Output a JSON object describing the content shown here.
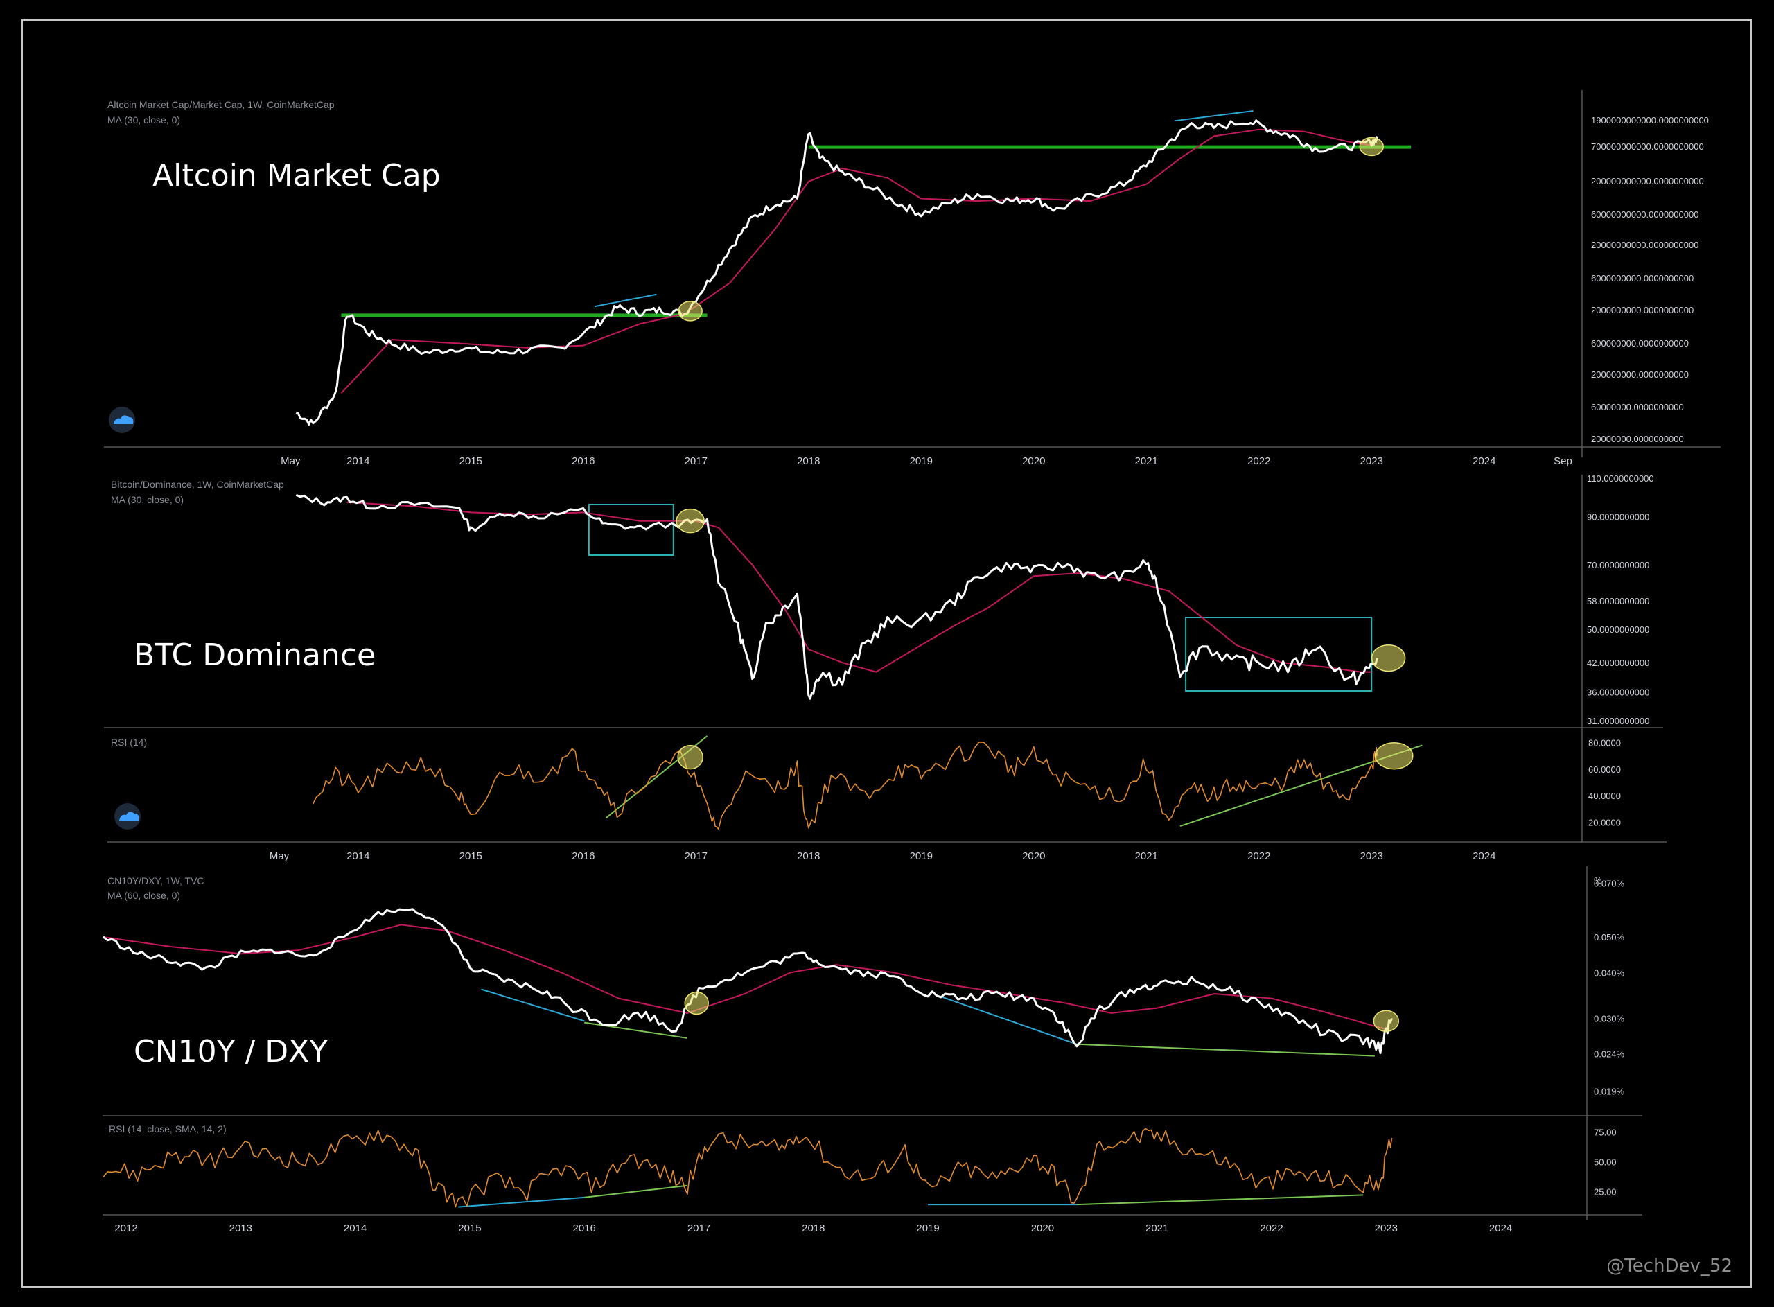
{
  "colors": {
    "background": "#000000",
    "price": "#ffffff",
    "ma": "#c2185b",
    "rsi": "#e08a2c",
    "support": "#1faa1f",
    "divergence_cyan": "#2aa8d8",
    "trend_green": "#7bc652",
    "highlight": "#e8e26a",
    "box": "#2bb3b3"
  },
  "watermark": "@TechDev_52",
  "logo_icon": "tradingview-cloud-icon",
  "chart_data": [
    {
      "type": "line",
      "title": "Altcoin Market Cap",
      "legend": [
        "Altcoin Market Cap/Market Cap, 1W, CoinMarketCap",
        "MA (30, close, 0)"
      ],
      "x_ticks": [
        "May",
        "2014",
        "2015",
        "2016",
        "2017",
        "2018",
        "2019",
        "2020",
        "2021",
        "2022",
        "2023",
        "2024",
        "Sep"
      ],
      "y_ticks": [
        "20000000.0000000000",
        "60000000.0000000000",
        "200000000.0000000000",
        "600000000.0000000000",
        "2000000000.0000000000",
        "6000000000.0000000000",
        "20000000000.0000000000",
        "60000000000.0000000000",
        "200000000000.0000000000",
        "700000000000.0000000000",
        "1900000000000.0000000000"
      ],
      "y_scale": "log",
      "series": [
        {
          "name": "Altcoin Market Cap/Market Cap",
          "x": [
            2013.45,
            2013.6,
            2013.8,
            2013.9,
            2014.1,
            2014.3,
            2014.6,
            2014.9,
            2015.2,
            2015.5,
            2015.8,
            2016.1,
            2016.3,
            2016.5,
            2016.7,
            2016.9,
            2017.1,
            2017.3,
            2017.5,
            2017.7,
            2017.9,
            2018.0,
            2018.1,
            2018.3,
            2018.5,
            2018.8,
            2019.0,
            2019.3,
            2019.5,
            2019.8,
            2020.0,
            2020.2,
            2020.5,
            2020.8,
            2021.0,
            2021.2,
            2021.4,
            2021.6,
            2021.9,
            2022.1,
            2022.3,
            2022.5,
            2022.8,
            2023.0,
            2023.05
          ],
          "values": [
            60000000,
            40000000,
            120000000,
            2000000000,
            1000000000,
            700000000,
            500000000,
            600000000,
            500000000,
            550000000,
            600000000,
            1300000000,
            2500000000,
            2100000000,
            2300000000,
            2000000000,
            6000000000,
            20000000000,
            60000000000,
            100000000000,
            120000000000,
            1200000000000,
            500000000000,
            300000000000,
            200000000000,
            100000000000,
            70000000000,
            110000000000,
            140000000000,
            110000000000,
            120000000000,
            80000000000,
            130000000000,
            200000000000,
            400000000000,
            900000000000,
            1700000000000,
            1500000000000,
            1900000000000,
            1400000000000,
            1100000000000,
            700000000000,
            750000000000,
            900000000000,
            950000000000
          ]
        },
        {
          "name": "MA (30, close, 0)",
          "x": [
            2013.85,
            2014.3,
            2014.9,
            2015.5,
            2016.0,
            2016.5,
            2016.9,
            2017.3,
            2017.7,
            2018.0,
            2018.3,
            2018.7,
            2019.0,
            2019.5,
            2020.0,
            2020.5,
            2021.0,
            2021.3,
            2021.6,
            2022.0,
            2022.4,
            2022.8,
            2023.0
          ],
          "values": [
            120000000,
            800000000,
            700000000,
            600000000,
            650000000,
            1400000000,
            2000000000,
            6000000000,
            40000000000,
            220000000000,
            350000000000,
            250000000000,
            120000000000,
            110000000000,
            120000000000,
            110000000000,
            200000000000,
            500000000000,
            1100000000000,
            1400000000000,
            1300000000000,
            900000000000,
            800000000000
          ]
        }
      ],
      "annotations": {
        "support_levels": [
          2000000000,
          750000000000
        ],
        "highlights": [
          "2016.95",
          "2023.0"
        ]
      }
    },
    {
      "type": "line",
      "title": "BTC Dominance",
      "legend": [
        "Bitcoin/Dominance, 1W, CoinMarketCap",
        "MA (30, close, 0)"
      ],
      "x_ticks": [
        "May",
        "2014",
        "2015",
        "2016",
        "2017",
        "2018",
        "2019",
        "2020",
        "2021",
        "2022",
        "2023",
        "2024"
      ],
      "y_ticks": [
        "31.0000000000",
        "36.0000000000",
        "42.0000000000",
        "50.0000000000",
        "58.0000000000",
        "70.0000000000",
        "90.0000000000",
        "110.0000000000"
      ],
      "series": [
        {
          "name": "Bitcoin/Dominance",
          "x": [
            2013.45,
            2013.7,
            2013.9,
            2014.1,
            2014.5,
            2014.9,
            2015.0,
            2015.3,
            2015.6,
            2016.0,
            2016.2,
            2016.5,
            2016.9,
            2017.1,
            2017.2,
            2017.4,
            2017.5,
            2017.6,
            2017.75,
            2017.9,
            2018.0,
            2018.1,
            2018.3,
            2018.5,
            2018.7,
            2019.0,
            2019.3,
            2019.5,
            2019.8,
            2020.0,
            2020.3,
            2020.5,
            2020.8,
            2021.0,
            2021.1,
            2021.3,
            2021.5,
            2021.8,
            2022.0,
            2022.3,
            2022.5,
            2022.8,
            2022.95,
            2023.05
          ],
          "values": [
            100,
            97,
            99,
            95,
            96,
            94,
            84,
            92,
            90,
            93,
            86,
            85,
            87,
            88,
            65,
            48,
            38,
            50,
            55,
            60,
            35,
            40,
            38,
            46,
            52,
            52,
            58,
            66,
            70,
            68,
            70,
            66,
            66,
            71,
            62,
            40,
            46,
            42,
            42,
            41,
            46,
            38,
            40,
            43
          ]
        },
        {
          "name": "MA (30, close, 0)",
          "x": [
            2013.9,
            2014.5,
            2015.0,
            2015.5,
            2016.0,
            2016.5,
            2017.0,
            2017.2,
            2017.5,
            2017.8,
            2018.0,
            2018.3,
            2018.6,
            2019.0,
            2019.3,
            2019.6,
            2020.0,
            2020.4,
            2020.8,
            2021.2,
            2021.5,
            2021.8,
            2022.2,
            2022.6,
            2022.9,
            2023.0
          ],
          "values": [
            97,
            95,
            92,
            91,
            92,
            88,
            88,
            85,
            70,
            55,
            45,
            42,
            40,
            46,
            51,
            56,
            66,
            67,
            65,
            61,
            53,
            46,
            42,
            41,
            40,
            40
          ]
        }
      ]
    },
    {
      "type": "line",
      "title": "RSI (14)",
      "y_ticks": [
        "20.0000",
        "40.0000",
        "60.0000",
        "80.0000"
      ],
      "series": [
        {
          "name": "RSI (14)",
          "x": [
            2013.6,
            2013.8,
            2014.0,
            2014.3,
            2014.6,
            2014.9,
            2015.0,
            2015.3,
            2015.6,
            2015.9,
            2016.1,
            2016.3,
            2016.6,
            2016.9,
            2017.1,
            2017.2,
            2017.4,
            2017.7,
            2017.9,
            2018.0,
            2018.2,
            2018.5,
            2018.8,
            2019.0,
            2019.3,
            2019.6,
            2019.8,
            2020.0,
            2020.2,
            2020.5,
            2020.8,
            2021.0,
            2021.2,
            2021.4,
            2021.6,
            2021.8,
            2022.0,
            2022.2,
            2022.4,
            2022.6,
            2022.8,
            2023.0,
            2023.05
          ],
          "values": [
            40,
            55,
            45,
            60,
            65,
            40,
            20,
            60,
            55,
            70,
            55,
            30,
            55,
            70,
            30,
            15,
            55,
            45,
            60,
            15,
            55,
            40,
            60,
            55,
            70,
            78,
            60,
            70,
            55,
            45,
            40,
            65,
            20,
            45,
            40,
            50,
            45,
            50,
            65,
            45,
            40,
            65,
            70
          ]
        }
      ],
      "annotations": {
        "trendlines": [
          [
            2016.2,
            23,
            2017.1,
            85
          ],
          [
            2021.3,
            17,
            2023.45,
            78
          ]
        ]
      }
    },
    {
      "type": "line",
      "title": "CN10Y / DXY",
      "legend": [
        "CN10Y/DXY, 1W, TVC",
        "MA (60, close, 0)"
      ],
      "unit": "%",
      "x_ticks": [
        "2012",
        "2013",
        "2014",
        "2015",
        "2016",
        "2017",
        "2018",
        "2019",
        "2020",
        "2021",
        "2022",
        "2023",
        "2024"
      ],
      "y_ticks": [
        "0.019%",
        "0.024%",
        "0.030%",
        "0.040%",
        "0.050%",
        "0.070%"
      ],
      "series": [
        {
          "name": "CN10Y/DXY",
          "x": [
            2011.8,
            2012.1,
            2012.4,
            2012.7,
            2013.0,
            2013.3,
            2013.6,
            2013.9,
            2014.2,
            2014.5,
            2014.8,
            2015.0,
            2015.3,
            2015.6,
            2015.9,
            2016.2,
            2016.5,
            2016.8,
            2017.0,
            2017.3,
            2017.6,
            2017.9,
            2018.1,
            2018.4,
            2018.7,
            2019.0,
            2019.3,
            2019.6,
            2019.9,
            2020.1,
            2020.3,
            2020.5,
            2020.8,
            2021.0,
            2021.3,
            2021.6,
            2021.9,
            2022.2,
            2022.5,
            2022.8,
            2022.95,
            2023.05
          ],
          "values": [
            0.05,
            0.045,
            0.043,
            0.041,
            0.045,
            0.046,
            0.044,
            0.05,
            0.058,
            0.06,
            0.052,
            0.041,
            0.038,
            0.036,
            0.032,
            0.029,
            0.031,
            0.028,
            0.036,
            0.039,
            0.042,
            0.045,
            0.042,
            0.04,
            0.039,
            0.035,
            0.034,
            0.035,
            0.034,
            0.031,
            0.025,
            0.032,
            0.036,
            0.037,
            0.038,
            0.036,
            0.033,
            0.03,
            0.027,
            0.026,
            0.025,
            0.03
          ]
        },
        {
          "name": "MA (60, close, 0)",
          "x": [
            2011.8,
            2012.4,
            2013.0,
            2013.5,
            2014.0,
            2014.4,
            2014.8,
            2015.3,
            2015.8,
            2016.3,
            2016.9,
            2017.4,
            2017.8,
            2018.2,
            2018.7,
            2019.2,
            2019.7,
            2020.2,
            2020.6,
            2021.0,
            2021.5,
            2022.0,
            2022.5,
            2023.0
          ],
          "values": [
            0.05,
            0.047,
            0.045,
            0.046,
            0.05,
            0.054,
            0.052,
            0.046,
            0.04,
            0.034,
            0.031,
            0.035,
            0.04,
            0.042,
            0.04,
            0.037,
            0.035,
            0.033,
            0.031,
            0.032,
            0.035,
            0.034,
            0.031,
            0.028
          ]
        }
      ]
    },
    {
      "type": "line",
      "title": "RSI (14, close, SMA, 14, 2)",
      "y_ticks": [
        "25.00",
        "50.00",
        "75.00"
      ],
      "series": [
        {
          "name": "RSI (14, close, SMA, 14, 2)",
          "x": [
            2011.8,
            2012.1,
            2012.4,
            2012.7,
            2013.0,
            2013.3,
            2013.6,
            2013.9,
            2014.2,
            2014.5,
            2014.7,
            2014.9,
            2015.2,
            2015.5,
            2015.8,
            2016.1,
            2016.4,
            2016.7,
            2016.9,
            2017.1,
            2017.4,
            2017.7,
            2017.9,
            2018.2,
            2018.5,
            2018.8,
            2019.0,
            2019.3,
            2019.6,
            2019.9,
            2020.1,
            2020.3,
            2020.5,
            2020.8,
            2021.0,
            2021.3,
            2021.6,
            2021.9,
            2022.2,
            2022.5,
            2022.8,
            2022.95,
            2023.05
          ],
          "values": [
            45,
            40,
            55,
            50,
            60,
            55,
            50,
            65,
            75,
            60,
            30,
            15,
            35,
            25,
            45,
            30,
            55,
            40,
            30,
            70,
            65,
            60,
            75,
            45,
            35,
            60,
            25,
            45,
            35,
            55,
            40,
            15,
            65,
            70,
            72,
            60,
            50,
            30,
            40,
            35,
            30,
            35,
            70
          ]
        }
      ],
      "annotations": {
        "divergence": [
          "2014.95-2016.0",
          "2019.0-2020.3",
          "2020.3-2022.8"
        ]
      }
    }
  ]
}
